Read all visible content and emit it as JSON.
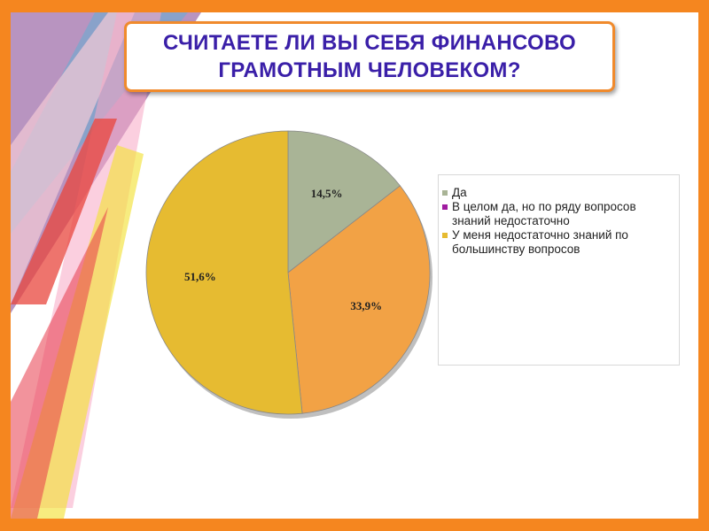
{
  "slide": {
    "title": "СЧИТАЕТЕ ЛИ ВЫ СЕБЯ ФИНАНСОВО ГРАМОТНЫМ ЧЕЛОВЕКОМ?"
  },
  "colors": {
    "frame": "#f5861f",
    "title_text": "#3a1fa8",
    "title_border": "#f08a2c"
  },
  "chart_data": {
    "type": "pie",
    "title": "",
    "legend_position": "right",
    "slices": [
      {
        "label": "Да",
        "value": 14.5,
        "display": "14,5%",
        "color": "#a9b496",
        "legend_color": "#a9b496"
      },
      {
        "label": "В целом да, но по ряду вопросов знаний недостаточно",
        "value": 33.9,
        "display": "33,9%",
        "color": "#f2a245",
        "legend_color": "#a01ca0"
      },
      {
        "label": "У меня недостаточно знаний по большинству вопросов",
        "value": 51.6,
        "display": "51,6%",
        "color": "#e6bb31",
        "legend_color": "#e6bb31"
      }
    ]
  }
}
